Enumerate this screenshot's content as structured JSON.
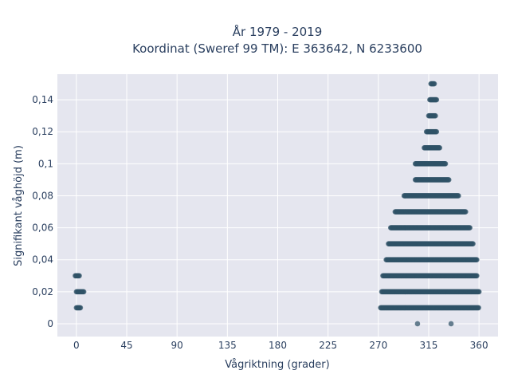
{
  "chart_data": {
    "type": "scatter",
    "title_line1": "År 1979 - 2019",
    "title_line2": "Koordinat (Sweref 99 TM): E 363642, N 6233600",
    "xlabel": "Vågriktning (grader)",
    "ylabel": "Signifikant våghöjd (m)",
    "xlim": [
      -17,
      377
    ],
    "ylim": [
      -0.008,
      0.156
    ],
    "xticks": [
      0,
      45,
      90,
      135,
      180,
      225,
      270,
      315,
      360
    ],
    "xtick_labels": [
      "0",
      "45",
      "90",
      "135",
      "180",
      "225",
      "270",
      "315",
      "360"
    ],
    "yticks": [
      0,
      0.02,
      0.04,
      0.06,
      0.08,
      0.1,
      0.12,
      0.14
    ],
    "ytick_labels": [
      "0",
      "0,02",
      "0,04",
      "0,06",
      "0,08",
      "0,1",
      "0,12",
      "0,14"
    ],
    "grid": true,
    "marker_color": "#2f5266",
    "background_color": "#e5e6ef",
    "series": [
      {
        "bands": [
          {
            "y": 0,
            "points": [
              305,
              335
            ]
          },
          {
            "y": 0.01,
            "ranges": [
              [
                0,
                4
              ],
              [
                272,
                360
              ]
            ]
          },
          {
            "y": 0.02,
            "ranges": [
              [
                0,
                7
              ],
              [
                273,
                360
              ]
            ]
          },
          {
            "y": 0.03,
            "ranges": [
              [
                -1,
                3
              ],
              [
                274,
                358
              ]
            ]
          },
          {
            "y": 0.04,
            "ranges": [
              [
                277,
                358
              ]
            ]
          },
          {
            "y": 0.05,
            "ranges": [
              [
                279,
                355
              ]
            ]
          },
          {
            "y": 0.06,
            "ranges": [
              [
                281,
                352
              ]
            ]
          },
          {
            "y": 0.07,
            "ranges": [
              [
                285,
                348
              ]
            ]
          },
          {
            "y": 0.08,
            "ranges": [
              [
                293,
                342
              ]
            ]
          },
          {
            "y": 0.09,
            "ranges": [
              [
                303,
                333
              ]
            ]
          },
          {
            "y": 0.1,
            "ranges": [
              [
                303,
                330
              ]
            ]
          },
          {
            "y": 0.11,
            "ranges": [
              [
                311,
                325
              ]
            ]
          },
          {
            "y": 0.12,
            "ranges": [
              [
                313,
                322
              ]
            ]
          },
          {
            "y": 0.13,
            "ranges": [
              [
                315,
                321
              ]
            ]
          },
          {
            "y": 0.14,
            "ranges": [
              [
                316,
                322
              ]
            ]
          },
          {
            "y": 0.15,
            "ranges": [
              [
                317,
                320
              ]
            ]
          }
        ]
      }
    ]
  }
}
